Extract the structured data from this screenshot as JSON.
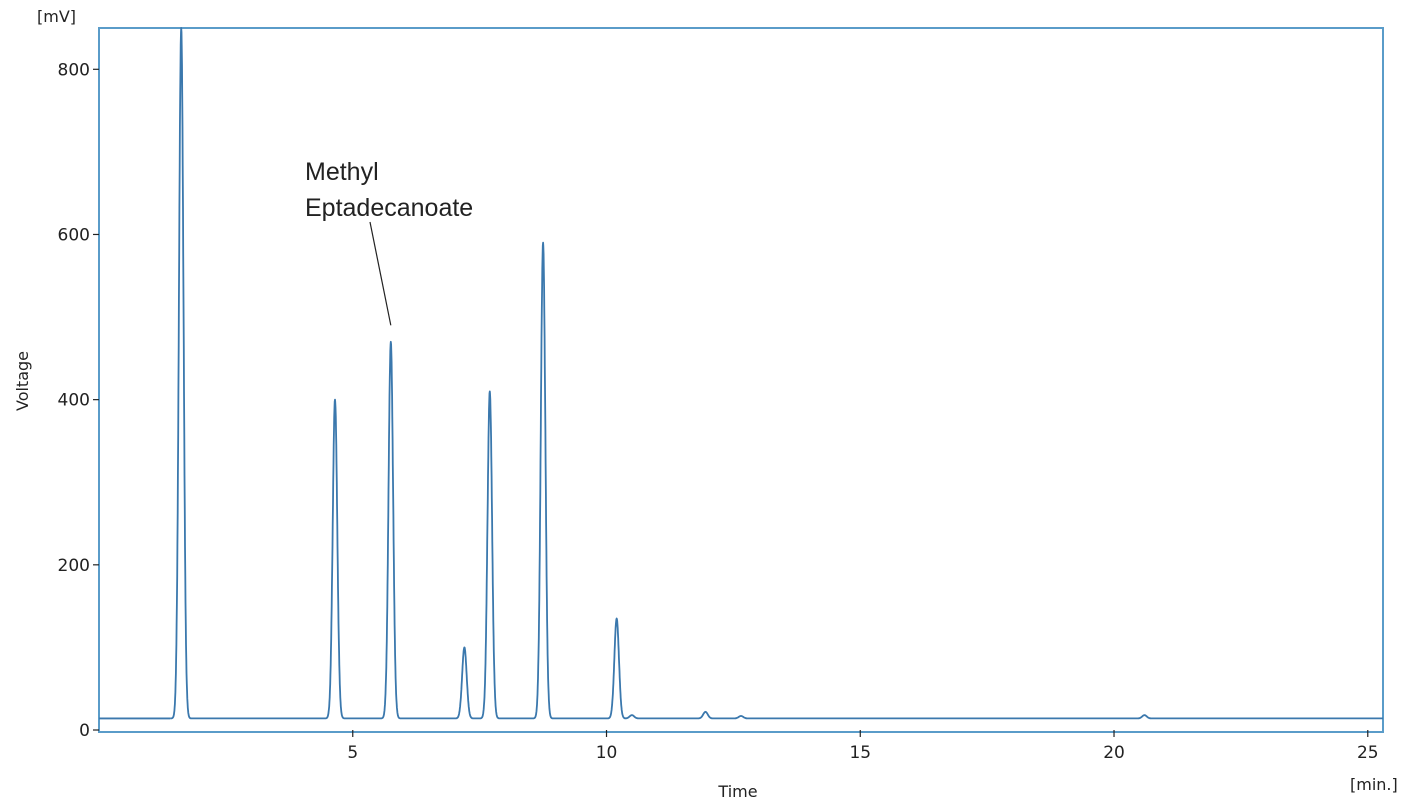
{
  "chart_data": {
    "type": "line",
    "xlabel": "Time",
    "ylabel": "Voltage",
    "x_unit": "[min.]",
    "y_unit": "[mV]",
    "xlim": [
      0,
      25.3
    ],
    "ylim": [
      0,
      850
    ],
    "x_ticks": [
      5,
      10,
      15,
      20,
      25
    ],
    "y_ticks": [
      0,
      200,
      400,
      600,
      800
    ],
    "grid": false,
    "baseline": 14,
    "series": [
      {
        "color": "#3b78ad",
        "peaks": [
          {
            "rt": 1.62,
            "height": 850
          },
          {
            "rt": 4.65,
            "height": 400
          },
          {
            "rt": 5.75,
            "height": 470
          },
          {
            "rt": 7.2,
            "height": 100
          },
          {
            "rt": 7.7,
            "height": 410
          },
          {
            "rt": 8.75,
            "height": 590
          },
          {
            "rt": 10.2,
            "height": 135
          },
          {
            "rt": 10.5,
            "height": 18
          },
          {
            "rt": 11.95,
            "height": 22
          },
          {
            "rt": 12.65,
            "height": 17
          },
          {
            "rt": 20.6,
            "height": 18
          }
        ]
      }
    ],
    "annotations": [
      {
        "lines": [
          "Methyl",
          "Eptadecanoate"
        ],
        "target_rt": 5.75,
        "target_value": 490
      }
    ]
  }
}
